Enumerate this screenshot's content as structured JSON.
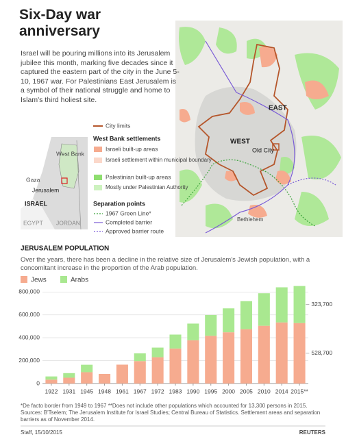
{
  "header": {
    "title": "Six-Day war anniversary",
    "intro": "Israel will be pouring millions into its Jerusalem jubilee this month, marking five decades since it captured the eastern part of the city in the June 5-10, 1967 war. For Palestinians East Jerusalem is a symbol of their national struggle and home to Islam's third holiest site."
  },
  "map_labels": {
    "east": "EAST",
    "west": "WEST",
    "old_city": "Old City",
    "bethlehem": "Bethlehem"
  },
  "inset_labels": {
    "west_bank": "West Bank",
    "gaza": "Gaza",
    "jerusalem": "Jerusalem",
    "israel": "ISRAEL",
    "egypt": "EGYPT",
    "jordan": "JORDAN"
  },
  "map_legend": {
    "city_limits": "City limits",
    "settlements_title": "West Bank settlements",
    "israeli_built": "Israeli built-up areas",
    "israeli_within": "Israeli settlement within municipal boundary",
    "palestinian_built": "Palestinian built-up areas",
    "palestinian_authority": "Mostly under Palestinian Authority",
    "separation_title": "Separation points",
    "green_line": "1967 Green Line*",
    "completed": "Completed barrier",
    "approved": "Approved barrier route"
  },
  "chart_data": {
    "type": "bar",
    "stacked": true,
    "title": "JERUSALEM POPULATION",
    "subtitle": "Over the years, there has been a decline in the relative size of Jerusalem's Jewish population, with a concomitant increase in the proportion of the Arab population.",
    "categories": [
      "1922",
      "1931",
      "1945",
      "1948",
      "1961",
      "1967",
      "1972",
      "1983",
      "1990",
      "1995",
      "2000",
      "2005",
      "2010",
      "2014",
      "2015**"
    ],
    "series": [
      {
        "name": "Jews",
        "color": "#f6ab8f",
        "values": [
          34000,
          51000,
          99000,
          84000,
          165000,
          196000,
          230000,
          306000,
          378000,
          417000,
          448000,
          475000,
          505000,
          534000,
          528700
        ],
        "value_labels": [
          null,
          null,
          null,
          null,
          null,
          null,
          null,
          null,
          null,
          null,
          null,
          null,
          null,
          null,
          "528,700"
        ]
      },
      {
        "name": "Arabs",
        "color": "#a9e890",
        "values": [
          28000,
          40000,
          65000,
          null,
          null,
          68000,
          84000,
          122000,
          146000,
          182000,
          209000,
          245000,
          284000,
          307000,
          323700
        ],
        "value_labels": [
          null,
          null,
          null,
          null,
          null,
          null,
          null,
          null,
          null,
          null,
          null,
          null,
          null,
          null,
          "323,700"
        ]
      }
    ],
    "ylim": [
      0,
      850000
    ],
    "yticks": [
      0,
      {
        "value": 200000,
        "label": "200,000"
      },
      {
        "value": 400000,
        "label": "400,000"
      },
      {
        "value": 600000,
        "label": "600,000"
      },
      {
        "value": 800000,
        "label": "800,000"
      }
    ],
    "grid": true
  },
  "footer": {
    "notes": "*De facto border from 1949 to 1967  **Does not include other populations which accounted for 13,300 persons in 2015.",
    "sources": "Sources: B'Tselem; The Jerusalem Institute for Israel Studies; Central Bureau of Statistics. Settlement areas and separation barriers as of November 2014.",
    "credit": "Staff, 15/10/2015",
    "agency": "REUTERS"
  }
}
